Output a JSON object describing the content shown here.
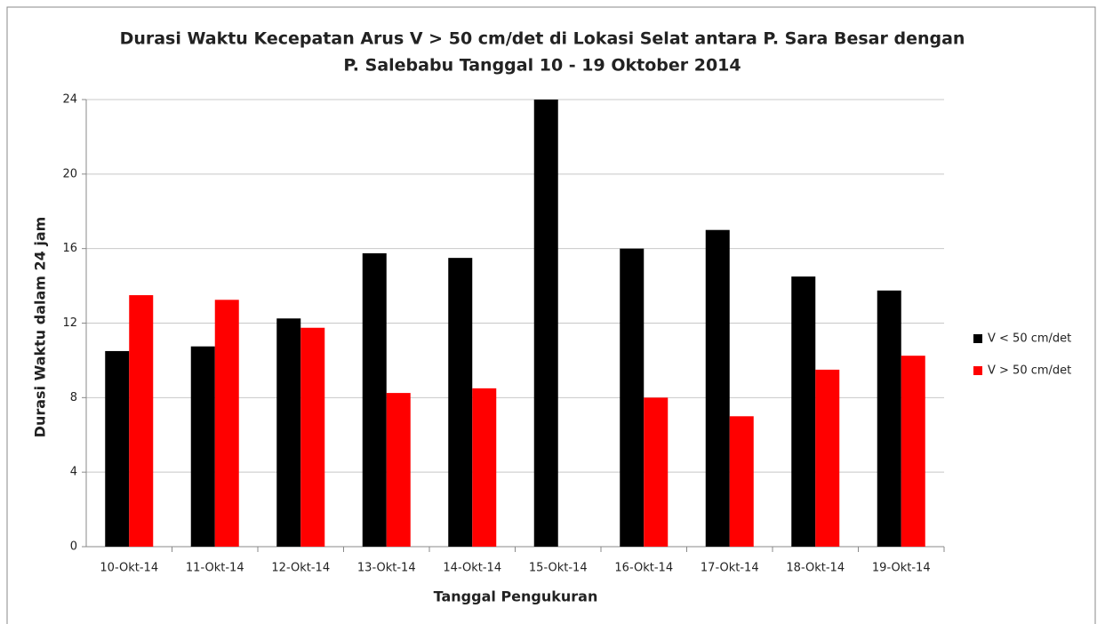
{
  "chart_data": {
    "type": "bar",
    "title": [
      "Durasi Waktu Kecepatan Arus V > 50 cm/det di Lokasi Selat antara P. Sara Besar dengan",
      "P. Salebabu  Tanggal 10 - 19 Oktober 2014"
    ],
    "x_label": "Tanggal Pengukuran",
    "y_label": "Durasi Waktu dalam 24 jam",
    "categories": [
      "10-Okt-14",
      "11-Okt-14",
      "12-Okt-14",
      "13-Okt-14",
      "14-Okt-14",
      "15-Okt-14",
      "16-Okt-14",
      "17-Okt-14",
      "18-Okt-14",
      "19-Okt-14"
    ],
    "series": [
      {
        "name": "V < 50 cm/det",
        "color": "#000000",
        "values": [
          10.5,
          10.75,
          12.25,
          15.75,
          15.5,
          24,
          16,
          17,
          14.5,
          13.75
        ]
      },
      {
        "name": "V > 50 cm/det",
        "color": "#ff0000",
        "values": [
          13.5,
          13.25,
          11.75,
          8.25,
          8.5,
          0,
          8,
          7,
          9.5,
          10.25
        ]
      }
    ],
    "ylim": [
      0,
      24
    ],
    "yticks": [
      0,
      4,
      8,
      12,
      16,
      20,
      24
    ],
    "grid": true,
    "legend": "right"
  }
}
